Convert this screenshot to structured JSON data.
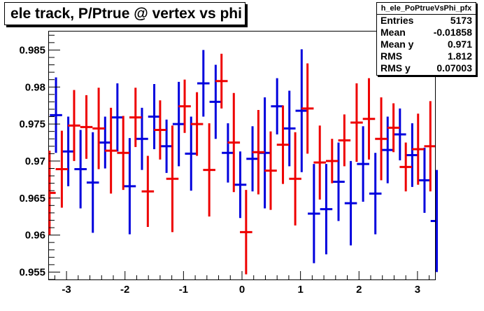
{
  "title": "ele track, P/Ptrue @ vertex vs phi",
  "stats": {
    "name": "h_ele_PoPtrueVsPhi_pfx",
    "rows": [
      {
        "label": "Entries",
        "value": "5173"
      },
      {
        "label": "Mean",
        "value": "-0.01858"
      },
      {
        "label": "Mean y",
        "value": "0.971"
      },
      {
        "label": "RMS",
        "value": "1.812"
      },
      {
        "label": "RMS y",
        "value": "0.07003"
      }
    ]
  },
  "colors": {
    "blue": "#0000dd",
    "red": "#ee0000",
    "axis": "#000000"
  },
  "chart_data": {
    "type": "scatter",
    "title": "ele track, P/Ptrue @ vertex vs phi",
    "xlabel": "",
    "ylabel": "",
    "xlim": [
      -3.3,
      3.3
    ],
    "ylim": [
      0.954,
      0.9875
    ],
    "x_tick_labels": [
      "-3",
      "-2",
      "-1",
      "0",
      "1",
      "2",
      "3"
    ],
    "y_tick_labels": [
      "0.955",
      "0.96",
      "0.965",
      "0.97",
      "0.975",
      "0.98",
      "0.985"
    ],
    "grid": false,
    "series": [
      {
        "color": "blue",
        "points": [
          {
            "x": -3.18,
            "y": 0.9762,
            "err": 0.0051
          },
          {
            "x": -2.97,
            "y": 0.9713,
            "err": 0.0047
          },
          {
            "x": -2.76,
            "y": 0.9689,
            "err": 0.0053
          },
          {
            "x": -2.55,
            "y": 0.9671,
            "err": 0.0068
          },
          {
            "x": -2.34,
            "y": 0.9725,
            "err": 0.0035
          },
          {
            "x": -2.13,
            "y": 0.9759,
            "err": 0.0046
          },
          {
            "x": -1.92,
            "y": 0.9666,
            "err": 0.0065
          },
          {
            "x": -1.71,
            "y": 0.973,
            "err": 0.0042
          },
          {
            "x": -1.5,
            "y": 0.976,
            "err": 0.0044
          },
          {
            "x": -1.29,
            "y": 0.972,
            "err": 0.0036
          },
          {
            "x": -1.08,
            "y": 0.975,
            "err": 0.0057
          },
          {
            "x": -0.87,
            "y": 0.971,
            "err": 0.005
          },
          {
            "x": -0.66,
            "y": 0.9805,
            "err": 0.0045
          },
          {
            "x": -0.45,
            "y": 0.978,
            "err": 0.005
          },
          {
            "x": -0.24,
            "y": 0.9711,
            "err": 0.004
          },
          {
            "x": -0.03,
            "y": 0.9668,
            "err": 0.0045
          },
          {
            "x": 0.18,
            "y": 0.9703,
            "err": 0.0044
          },
          {
            "x": 0.39,
            "y": 0.9711,
            "err": 0.0075
          },
          {
            "x": 0.6,
            "y": 0.9774,
            "err": 0.0038
          },
          {
            "x": 0.81,
            "y": 0.9744,
            "err": 0.0051
          },
          {
            "x": 1.02,
            "y": 0.9768,
            "err": 0.0083
          },
          {
            "x": 1.23,
            "y": 0.9629,
            "err": 0.0067
          },
          {
            "x": 1.44,
            "y": 0.9635,
            "err": 0.0061
          },
          {
            "x": 1.65,
            "y": 0.9672,
            "err": 0.0053
          },
          {
            "x": 1.86,
            "y": 0.9643,
            "err": 0.0057
          },
          {
            "x": 2.07,
            "y": 0.9696,
            "err": 0.0051
          },
          {
            "x": 2.28,
            "y": 0.9656,
            "err": 0.0055
          },
          {
            "x": 2.49,
            "y": 0.9715,
            "err": 0.0045
          },
          {
            "x": 2.7,
            "y": 0.9736,
            "err": 0.0035
          },
          {
            "x": 2.91,
            "y": 0.9708,
            "err": 0.0043
          },
          {
            "x": 3.12,
            "y": 0.9674,
            "err": 0.0044
          },
          {
            "x": 3.33,
            "y": 0.9619,
            "err": 0.0069
          }
        ]
      },
      {
        "color": "red",
        "points": [
          {
            "x": -3.29,
            "y": 0.9657,
            "err": 0.0057
          },
          {
            "x": -3.08,
            "y": 0.9689,
            "err": 0.0052
          },
          {
            "x": -2.87,
            "y": 0.9748,
            "err": 0.0048
          },
          {
            "x": -2.66,
            "y": 0.9746,
            "err": 0.0043
          },
          {
            "x": -2.45,
            "y": 0.9744,
            "err": 0.0055
          },
          {
            "x": -2.24,
            "y": 0.9714,
            "err": 0.0058
          },
          {
            "x": -2.03,
            "y": 0.9711,
            "err": 0.005
          },
          {
            "x": -1.82,
            "y": 0.9759,
            "err": 0.004
          },
          {
            "x": -1.61,
            "y": 0.9659,
            "err": 0.0048
          },
          {
            "x": -1.4,
            "y": 0.9742,
            "err": 0.004
          },
          {
            "x": -1.19,
            "y": 0.9676,
            "err": 0.0072
          },
          {
            "x": -0.98,
            "y": 0.9774,
            "err": 0.0036
          },
          {
            "x": -0.77,
            "y": 0.975,
            "err": 0.0043
          },
          {
            "x": -0.56,
            "y": 0.9688,
            "err": 0.0063
          },
          {
            "x": -0.35,
            "y": 0.9808,
            "err": 0.0037
          },
          {
            "x": -0.14,
            "y": 0.9725,
            "err": 0.0067
          },
          {
            "x": 0.07,
            "y": 0.9604,
            "err": 0.0057
          },
          {
            "x": 0.28,
            "y": 0.9712,
            "err": 0.0057
          },
          {
            "x": 0.49,
            "y": 0.9687,
            "err": 0.0053
          },
          {
            "x": 0.7,
            "y": 0.9722,
            "err": 0.0053
          },
          {
            "x": 0.91,
            "y": 0.9676,
            "err": 0.0063
          },
          {
            "x": 1.12,
            "y": 0.9771,
            "err": 0.0061
          },
          {
            "x": 1.33,
            "y": 0.9698,
            "err": 0.005
          },
          {
            "x": 1.54,
            "y": 0.97,
            "err": 0.003
          },
          {
            "x": 1.75,
            "y": 0.9728,
            "err": 0.0035
          },
          {
            "x": 1.96,
            "y": 0.9752,
            "err": 0.0053
          },
          {
            "x": 2.17,
            "y": 0.9757,
            "err": 0.0055
          },
          {
            "x": 2.38,
            "y": 0.973,
            "err": 0.0056
          },
          {
            "x": 2.59,
            "y": 0.9745,
            "err": 0.0033
          },
          {
            "x": 2.8,
            "y": 0.9692,
            "err": 0.0033
          },
          {
            "x": 3.01,
            "y": 0.9716,
            "err": 0.0048
          },
          {
            "x": 3.22,
            "y": 0.972,
            "err": 0.0061
          }
        ]
      }
    ]
  }
}
